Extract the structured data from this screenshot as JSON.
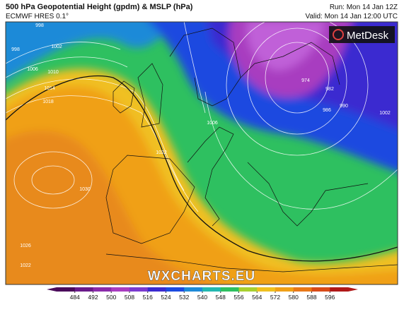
{
  "header": {
    "title": "500 hPa Geopotential Height (gpdm) & MSLP (hPa)",
    "subtitle": "ECMWF HRES 0.1°",
    "run": "Run: Mon 14 Jan 12Z",
    "valid": "Valid: Mon 14 Jan 12:00 UTC"
  },
  "logo": "MetDesk",
  "watermark": "WXCHARTS.EU",
  "isobar_labels": [
    998,
    1002,
    1006,
    1010,
    1014,
    1018,
    1022,
    1030,
    1026,
    1022,
    974,
    982,
    986,
    990,
    1002,
    1006,
    998
  ],
  "colorbar": {
    "range": [
      476,
      604
    ],
    "ticks": [
      484,
      492,
      500,
      508,
      516,
      524,
      532,
      540,
      548,
      556,
      564,
      572,
      580,
      588,
      596
    ],
    "colors": [
      "#4a0a5a",
      "#6a1a8a",
      "#8a2aaa",
      "#a83cc0",
      "#7a3ad0",
      "#3a2ad0",
      "#1c4ae0",
      "#1e8ad8",
      "#22b8b0",
      "#2ec060",
      "#a8d030",
      "#f0c020",
      "#f0a018",
      "#e87818",
      "#d84a18",
      "#b01818"
    ]
  }
}
